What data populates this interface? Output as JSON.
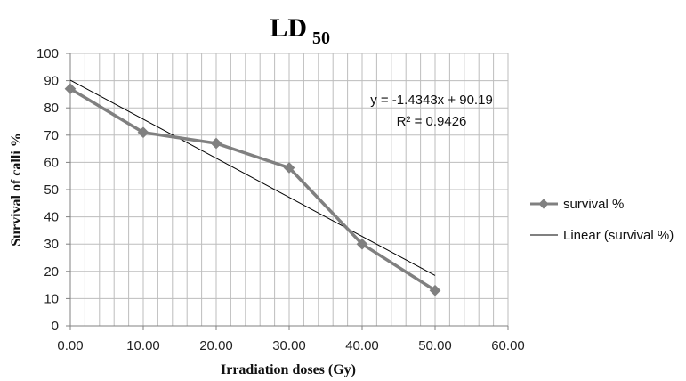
{
  "chart_data": {
    "type": "line",
    "title": "LD",
    "title_subscript": "50",
    "xlabel": "Irradiation doses (Gy)",
    "ylabel": "Survival of calli  %",
    "xlim": [
      0,
      60
    ],
    "ylim": [
      0,
      100
    ],
    "x_ticks": [
      "0.00",
      "10.00",
      "20.00",
      "30.00",
      "40.00",
      "50.00",
      "60.00"
    ],
    "y_ticks": [
      "0",
      "10",
      "20",
      "30",
      "40",
      "50",
      "60",
      "70",
      "80",
      "90",
      "100"
    ],
    "grid": true,
    "legend_position": "right",
    "series": [
      {
        "name": "survival %",
        "x": [
          0,
          10,
          20,
          30,
          40,
          50
        ],
        "y": [
          87,
          71,
          67,
          58,
          30,
          13
        ],
        "color": "#808080",
        "marker": "diamond"
      }
    ],
    "trendline": {
      "name": "Linear (survival %)",
      "slope": -1.4343,
      "intercept": 90.19,
      "x_range": [
        0,
        50
      ],
      "color": "#000000",
      "equation": "y = -1.4343x + 90.19",
      "r_squared_label": "R² = 0.9426"
    }
  }
}
